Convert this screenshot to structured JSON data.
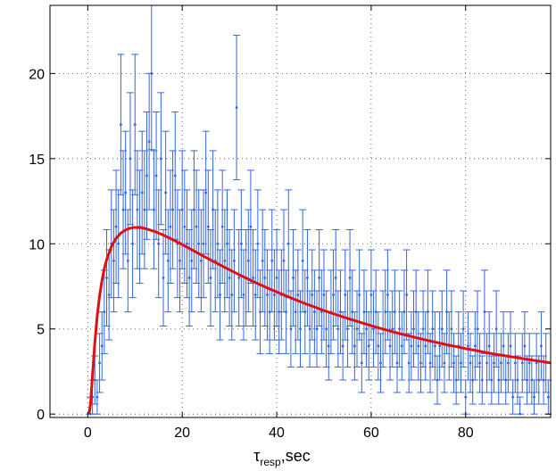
{
  "chart_data": {
    "type": "scatter",
    "title": "",
    "xlabel": {
      "symbol": "τ",
      "subscript": "resp",
      "suffix": ",sec"
    },
    "ylabel": "",
    "xlim": [
      -8,
      98
    ],
    "ylim": [
      -0.2,
      24
    ],
    "xticks": [
      0,
      20,
      40,
      60,
      80
    ],
    "yticks": [
      0,
      5,
      10,
      15,
      20
    ],
    "grid": true,
    "grid_style": "dotted",
    "colors": {
      "points": "#3366e6",
      "fit": "#e01010",
      "axes": "#000000"
    },
    "series": [
      {
        "kind": "errorbar",
        "x": [
          0.5,
          1,
          1.5,
          2,
          2.5,
          3,
          3.5,
          4,
          4.5,
          5,
          5.5,
          6,
          6.5,
          7,
          7.5,
          8,
          8.5,
          9,
          9.5,
          10,
          10.5,
          11,
          11.5,
          12,
          12.5,
          13,
          13.5,
          14,
          14.5,
          15,
          15.5,
          16,
          16.5,
          17,
          17.5,
          18,
          18.5,
          19,
          19.5,
          20,
          20.5,
          21,
          21.5,
          22,
          22.5,
          23,
          23.5,
          24,
          24.5,
          25,
          25.5,
          26,
          26.5,
          27,
          27.5,
          28,
          28.5,
          29,
          29.5,
          30,
          30.5,
          31,
          31.5,
          32,
          32.5,
          33,
          33.5,
          34,
          34.5,
          35,
          35.5,
          36,
          36.5,
          37,
          37.5,
          38,
          38.5,
          39,
          39.5,
          40,
          40.5,
          41,
          41.5,
          42,
          42.5,
          43,
          43.5,
          44,
          44.5,
          45,
          45.5,
          46,
          46.5,
          47,
          47.5,
          48,
          48.5,
          49,
          49.5,
          50,
          50.5,
          51,
          51.5,
          52,
          52.5,
          53,
          53.5,
          54,
          54.5,
          55,
          55.5,
          56,
          56.5,
          57,
          57.5,
          58,
          58.5,
          59,
          59.5,
          60,
          60.5,
          61,
          61.5,
          62,
          62.5,
          63,
          63.5,
          64,
          64.5,
          65,
          65.5,
          66,
          66.5,
          67,
          67.5,
          68,
          68.5,
          69,
          69.5,
          70,
          70.5,
          71,
          71.5,
          72,
          72.5,
          73,
          73.5,
          74,
          74.5,
          75,
          75.5,
          76,
          76.5,
          77,
          77.5,
          78,
          78.5,
          79,
          79.5,
          80,
          80.5,
          81,
          81.5,
          82,
          82.5,
          83,
          83.5,
          84,
          84.5,
          85,
          85.5,
          86,
          86.5,
          87,
          87.5,
          88,
          88.5,
          89,
          89.5,
          90,
          90.5,
          91,
          91.5,
          92,
          92.5,
          93,
          93.5,
          94,
          94.5,
          95,
          95.5,
          96,
          96.5,
          97,
          97.5
        ],
        "y": [
          0,
          1,
          2,
          1,
          3,
          4,
          6,
          8,
          7,
          10,
          9,
          11,
          10,
          17,
          12,
          13,
          9,
          15,
          10,
          17,
          12,
          11,
          13,
          12,
          14,
          16,
          20,
          12,
          14,
          10,
          15,
          8,
          13,
          9,
          11,
          12,
          14,
          10,
          9,
          12,
          11,
          10,
          8,
          9,
          12,
          11,
          10,
          9,
          10,
          13,
          11,
          8,
          12,
          9,
          10,
          7,
          11,
          9,
          10,
          8,
          7,
          9,
          18,
          8,
          10,
          7,
          8,
          9,
          11,
          8,
          7,
          10,
          6,
          9,
          8,
          7,
          6,
          9,
          7,
          8,
          6,
          7,
          9,
          6,
          10,
          5,
          8,
          6,
          7,
          5,
          9,
          6,
          8,
          5,
          7,
          6,
          5,
          8,
          6,
          7,
          5,
          4,
          6,
          7,
          8,
          5,
          6,
          4,
          7,
          5,
          8,
          6,
          4,
          5,
          7,
          3,
          6,
          5,
          4,
          7,
          5,
          6,
          4,
          3,
          5,
          6,
          7,
          4,
          5,
          6,
          3,
          5,
          4,
          6,
          7,
          3,
          4,
          5,
          6,
          4,
          3,
          5,
          4,
          6,
          3,
          5,
          4,
          2,
          4,
          5,
          3,
          6,
          4,
          5,
          3,
          2,
          4,
          3,
          5,
          1,
          4,
          3,
          2,
          4,
          5,
          3,
          2,
          6,
          3,
          4,
          2,
          3,
          5,
          2,
          3,
          4,
          2,
          3,
          4,
          1,
          3,
          2,
          0,
          3,
          4,
          2,
          3,
          2,
          1,
          3,
          2,
          4,
          2,
          3,
          1
        ]
      },
      {
        "kind": "line",
        "name": "",
        "model": "lognormal-fit",
        "x": [
          0.3,
          0.6,
          1,
          1.5,
          2,
          2.5,
          3,
          3.5,
          4,
          5,
          6,
          7,
          8,
          9,
          10,
          11,
          12,
          14,
          16,
          18,
          20,
          22,
          24,
          26,
          28,
          30,
          32,
          34,
          36,
          38,
          40,
          42,
          44,
          46,
          48,
          50,
          52,
          54,
          56,
          58,
          60,
          62,
          64,
          66,
          68,
          70,
          72,
          74,
          76,
          78,
          80,
          82,
          84,
          86,
          88,
          90,
          92,
          94,
          96,
          98
        ],
        "y": [
          0.01,
          0.66,
          2.26,
          4.21,
          5.76,
          6.93,
          7.83,
          8.53,
          9.07,
          9.84,
          10.32,
          10.63,
          10.81,
          10.92,
          10.96,
          10.95,
          10.91,
          10.74,
          10.51,
          10.24,
          9.95,
          9.65,
          9.35,
          9.05,
          8.76,
          8.47,
          8.19,
          7.92,
          7.66,
          7.41,
          7.17,
          6.94,
          6.71,
          6.49,
          6.29,
          6.08,
          5.89,
          5.71,
          5.53,
          5.36,
          5.19,
          5.03,
          4.88,
          4.73,
          4.59,
          4.45,
          4.32,
          4.2,
          4.07,
          3.96,
          3.84,
          3.74,
          3.63,
          3.53,
          3.44,
          3.35,
          3.26,
          3.17,
          3.09,
          3.01
        ]
      }
    ]
  }
}
